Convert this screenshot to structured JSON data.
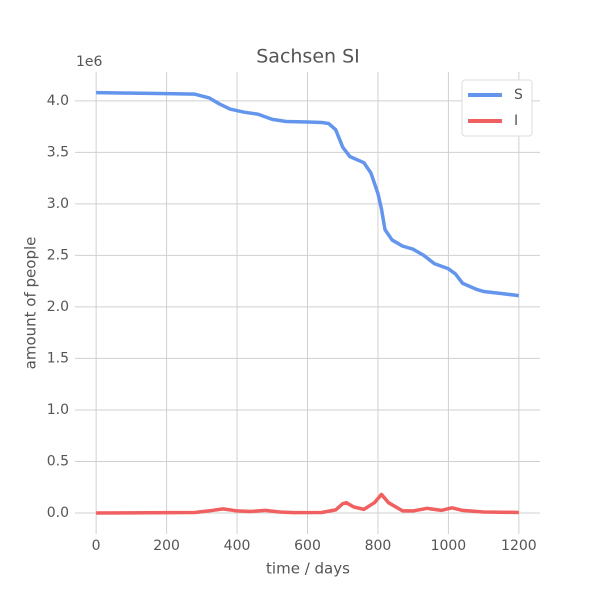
{
  "chart_data": {
    "type": "line",
    "title": "Sachsen SI",
    "x_label": "time / days",
    "y_label": "amount of people",
    "y_offset_label": "1e6",
    "series": [
      {
        "name": "S",
        "color": "#6495ed",
        "x": [
          0,
          100,
          200,
          280,
          320,
          350,
          380,
          420,
          460,
          500,
          540,
          600,
          640,
          660,
          680,
          700,
          720,
          760,
          780,
          800,
          810,
          820,
          840,
          870,
          900,
          930,
          960,
          1000,
          1020,
          1040,
          1080,
          1100,
          1150,
          1200
        ],
        "values": [
          4.08,
          4.075,
          4.07,
          4.065,
          4.03,
          3.97,
          3.92,
          3.89,
          3.87,
          3.82,
          3.8,
          3.795,
          3.79,
          3.78,
          3.72,
          3.55,
          3.46,
          3.4,
          3.3,
          3.1,
          2.95,
          2.75,
          2.65,
          2.59,
          2.56,
          2.5,
          2.42,
          2.37,
          2.32,
          2.23,
          2.17,
          2.15,
          2.13,
          2.11
        ]
      },
      {
        "name": "I",
        "color": "#f06060",
        "x": [
          0,
          280,
          320,
          360,
          400,
          440,
          480,
          520,
          560,
          640,
          680,
          700,
          710,
          730,
          760,
          790,
          810,
          830,
          870,
          900,
          940,
          980,
          1010,
          1040,
          1100,
          1200
        ],
        "values": [
          0,
          0.005,
          0.02,
          0.04,
          0.02,
          0.015,
          0.025,
          0.01,
          0.003,
          0.005,
          0.03,
          0.09,
          0.1,
          0.06,
          0.035,
          0.1,
          0.18,
          0.1,
          0.02,
          0.02,
          0.045,
          0.025,
          0.05,
          0.025,
          0.01,
          0.005
        ]
      }
    ],
    "xlim": [
      -60,
      1260
    ],
    "xticks": [
      0,
      200,
      400,
      600,
      800,
      1000,
      1200
    ],
    "ylim": [
      -0.204,
      4.28
    ],
    "yticks": [
      {
        "value": 0,
        "label": "0.0"
      },
      {
        "value": 0.5,
        "label": "0.5"
      },
      {
        "value": 1,
        "label": "1.0"
      },
      {
        "value": 1.5,
        "label": "1.5"
      },
      {
        "value": 2,
        "label": "2.0"
      },
      {
        "value": 2.5,
        "label": "2.5"
      },
      {
        "value": 3,
        "label": "3.0"
      },
      {
        "value": 3.5,
        "label": "3.5"
      },
      {
        "value": 4,
        "label": "4.0"
      }
    ],
    "grid": true,
    "legend": "upper right"
  }
}
